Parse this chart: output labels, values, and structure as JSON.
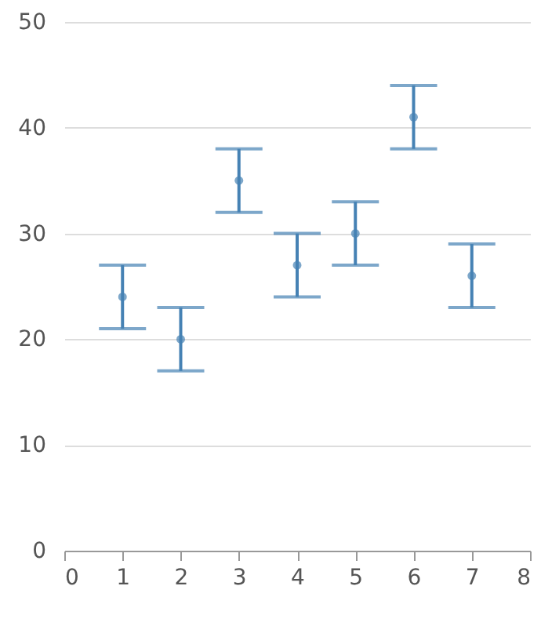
{
  "chart_data": {
    "type": "scatter",
    "grid": "y",
    "x": [
      1,
      2,
      3,
      4,
      5,
      6,
      7
    ],
    "series": [
      {
        "color": "#4682b4",
        "values": [
          24,
          20,
          35,
          27,
          30,
          41,
          26
        ],
        "errors": [
          3,
          3,
          3,
          3,
          3,
          3,
          3
        ]
      }
    ],
    "xlim": [
      0,
      8
    ],
    "xticks": [
      0,
      1,
      2,
      3,
      4,
      5,
      6,
      7,
      8
    ],
    "ylim": [
      0,
      50
    ],
    "yticks": [
      0,
      10,
      20,
      30,
      40,
      50
    ]
  }
}
